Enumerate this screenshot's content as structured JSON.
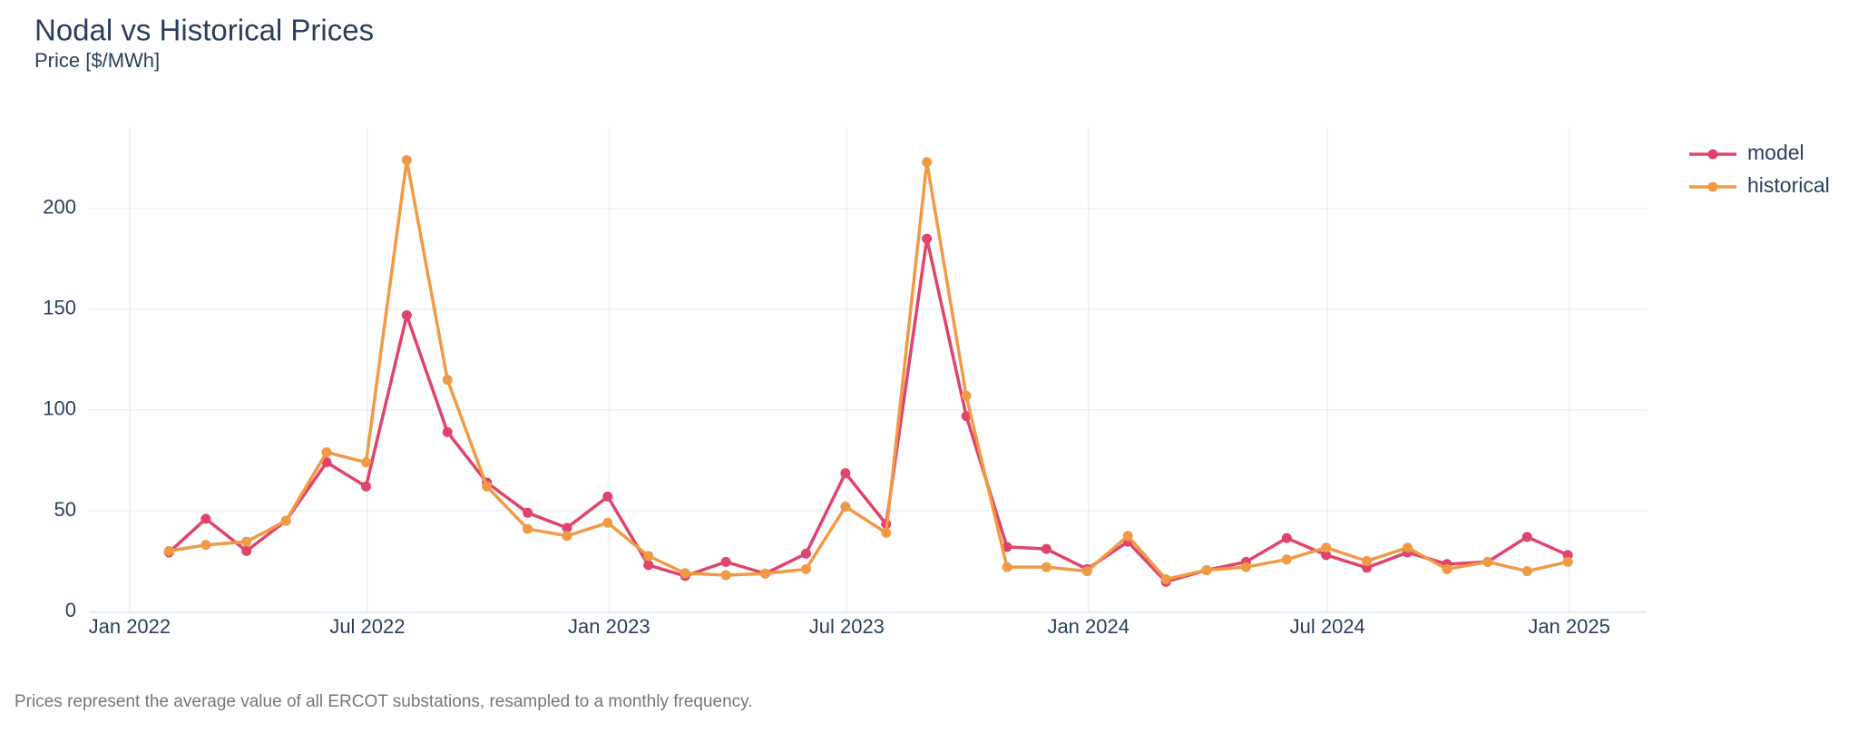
{
  "chart_data": {
    "type": "line",
    "title": "Nodal vs Historical Prices",
    "subtitle": "Price [$/MWh]",
    "annotation": "Prices represent the average value of all ERCOT substations, resampled to a monthly frequency.",
    "x": [
      "2022-01",
      "2022-02",
      "2022-03",
      "2022-04",
      "2022-05",
      "2022-06",
      "2022-07",
      "2022-08",
      "2022-09",
      "2022-10",
      "2022-11",
      "2022-12",
      "2023-01",
      "2023-02",
      "2023-03",
      "2023-04",
      "2023-05",
      "2023-06",
      "2023-07",
      "2023-08",
      "2023-09",
      "2023-10",
      "2023-11",
      "2023-12",
      "2024-01",
      "2024-02",
      "2024-03",
      "2024-04",
      "2024-05",
      "2024-06",
      "2024-07",
      "2024-08",
      "2024-09",
      "2024-10",
      "2024-11",
      "2024-12"
    ],
    "series": [
      {
        "name": "model",
        "color": "#e0436b",
        "values": [
          29.3,
          46,
          30,
          45,
          74,
          62,
          147,
          89,
          64,
          49,
          41.5,
          57,
          23,
          17.6,
          24.6,
          18.8,
          28.7,
          68.6,
          43.4,
          185,
          97,
          32,
          31,
          21,
          34.6,
          14.7,
          20.5,
          24.6,
          36.4,
          28,
          21.7,
          29.3,
          23.5,
          24.6,
          37,
          28
        ]
      },
      {
        "name": "historical",
        "color": "#f19a45",
        "values": [
          30,
          33,
          34.6,
          45,
          79,
          74,
          224,
          115,
          62,
          41,
          37.5,
          44,
          27.5,
          19,
          18,
          18.8,
          21,
          52,
          39,
          223,
          107,
          22,
          22,
          20,
          37.5,
          16,
          20.5,
          22,
          25.8,
          31.7,
          25,
          31.7,
          21,
          24.6,
          20,
          24.6
        ]
      }
    ],
    "xlim": [
      "2021-12",
      "2025-03"
    ],
    "xticks": [
      {
        "value": "2022-01",
        "label": "Jan 2022"
      },
      {
        "value": "2022-07",
        "label": "Jul 2022"
      },
      {
        "value": "2023-01",
        "label": "Jan 2023"
      },
      {
        "value": "2023-07",
        "label": "Jul 2023"
      },
      {
        "value": "2024-01",
        "label": "Jan 2024"
      },
      {
        "value": "2024-07",
        "label": "Jul 2024"
      },
      {
        "value": "2025-01",
        "label": "Jan 2025"
      }
    ],
    "ylim": [
      0,
      240
    ],
    "yticks": [
      0,
      50,
      100,
      150,
      200
    ],
    "grid": true,
    "legend": "top-right"
  }
}
